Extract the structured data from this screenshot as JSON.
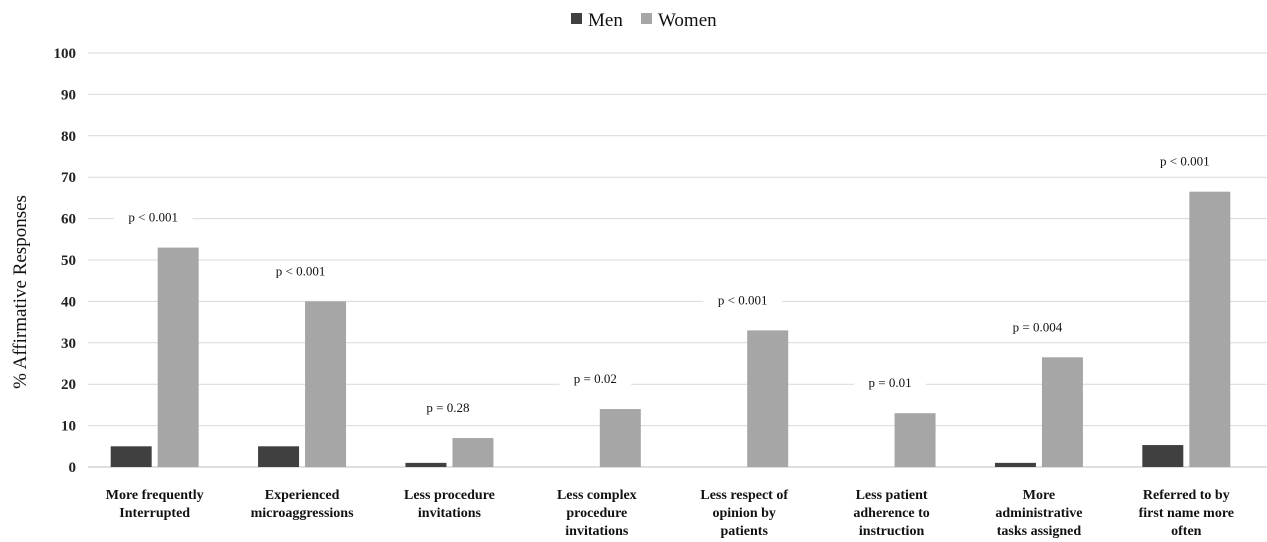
{
  "chart_data": {
    "type": "bar",
    "ylabel": "% Affirmative Responses",
    "xlabel": "",
    "ylim": [
      0,
      100
    ],
    "yticks": [
      0,
      10,
      20,
      30,
      40,
      50,
      60,
      70,
      80,
      90,
      100
    ],
    "grid": true,
    "legend_position": "top-center",
    "categories": [
      [
        "More frequently",
        "Interrupted"
      ],
      [
        "Experienced",
        "microaggressions"
      ],
      [
        "Less procedure",
        "invitations"
      ],
      [
        "Less complex",
        "procedure",
        "invitations"
      ],
      [
        "Less respect of",
        "opinion by",
        "patients"
      ],
      [
        "Less patient",
        "adherence to",
        "instruction"
      ],
      [
        "More",
        "administrative",
        "tasks assigned"
      ],
      [
        "Referred to by",
        "first name more",
        "often"
      ]
    ],
    "series": [
      {
        "name": "Men",
        "color": "#404040",
        "values": [
          5,
          5,
          1,
          0,
          0,
          0,
          1,
          5.3
        ]
      },
      {
        "name": "Women",
        "color": "#a6a6a6",
        "values": [
          53,
          40,
          7,
          14,
          33,
          13,
          26.5,
          66.5
        ]
      }
    ],
    "annotations": [
      "p < 0.001",
      "p < 0.001",
      "p = 0.28",
      "p = 0.02",
      "p < 0.001",
      "p = 0.01",
      "p = 0.004",
      "p < 0.001"
    ]
  }
}
